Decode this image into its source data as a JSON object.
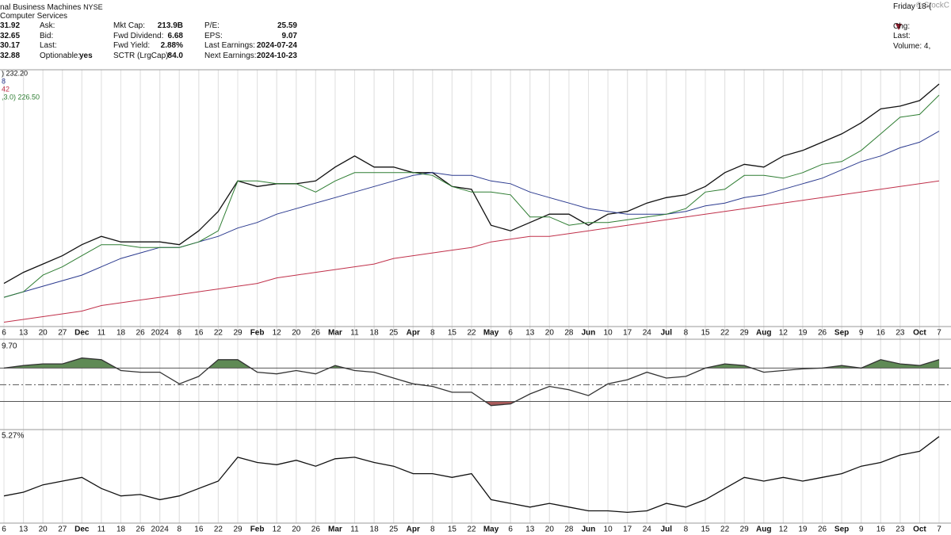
{
  "header": {
    "name": "nal Business Machines",
    "exchange": "NYSE",
    "sector": "Computer Services",
    "quote": [
      [
        "31.92",
        "Ask:"
      ],
      [
        "32.65",
        "Bid:"
      ],
      [
        "30.17",
        "Last:"
      ],
      [
        "32.88",
        "Optionable:",
        "yes"
      ]
    ],
    "fundamentals": [
      [
        "Mkt Cap:",
        "213.9B"
      ],
      [
        "Fwd Dividend:",
        "6.68"
      ],
      [
        "Fwd Yield:",
        "2.88%"
      ],
      [
        "SCTR (LrgCap):",
        "84.0"
      ]
    ],
    "earnings": [
      [
        "P/E:",
        "25.59"
      ],
      [
        "EPS:",
        "9.07"
      ],
      [
        "Last Earnings:",
        "2024-07-24"
      ],
      [
        "Next Earnings:",
        "2024-10-23"
      ]
    ],
    "right": [
      "Friday 18-(",
      "Chg:",
      "Last:",
      "Volume: 4,"
    ],
    "credit": "© StockC"
  },
  "chart_data": [
    {
      "type": "line",
      "categories": [
        "6",
        "13",
        "20",
        "27",
        "Dec",
        "11",
        "18",
        "26",
        "2024",
        "8",
        "16",
        "22",
        "29",
        "Feb",
        "12",
        "20",
        "26",
        "Mar",
        "11",
        "18",
        "25",
        "Apr",
        "8",
        "15",
        "22",
        "May",
        "6",
        "13",
        "20",
        "28",
        "Jun",
        "10",
        "17",
        "24",
        "Jul",
        "8",
        "15",
        "22",
        "29",
        "Aug",
        "12",
        "19",
        "26",
        "Sep",
        "9",
        "16",
        "23",
        "Oct",
        "7"
      ],
      "ylim": [
        145,
        236
      ],
      "series": [
        {
          "name": ") 232.20",
          "color": "#111111",
          "values": [
            160,
            164,
            167,
            170,
            174,
            177,
            175,
            175,
            175,
            174,
            179,
            186,
            197,
            195,
            196,
            196,
            197,
            202,
            206,
            202,
            202,
            200,
            200,
            195,
            194,
            181,
            179,
            182,
            185,
            185,
            181,
            185,
            186,
            189,
            191,
            192,
            195,
            200,
            203,
            202,
            206,
            208,
            211,
            214,
            218,
            223,
            224,
            226,
            232
          ]
        },
        {
          "name": "8",
          "color": "#2b3a8f",
          "values": [
            155,
            157,
            159,
            161,
            163,
            166,
            169,
            171,
            173,
            173,
            175,
            177,
            180,
            182,
            185,
            187,
            189,
            191,
            193,
            195,
            197,
            199,
            200,
            199,
            199,
            197,
            196,
            193,
            191,
            189,
            187,
            186,
            185,
            185,
            185,
            186,
            188,
            189,
            191,
            192,
            194,
            196,
            198,
            201,
            204,
            206,
            209,
            211,
            215
          ]
        },
        {
          "name": "42",
          "color": "#c0304a",
          "values": [
            146,
            147,
            148,
            149,
            150,
            152,
            153,
            154,
            155,
            156,
            157,
            158,
            159,
            160,
            162,
            163,
            164,
            165,
            166,
            167,
            169,
            170,
            171,
            172,
            173,
            175,
            176,
            177,
            177,
            178,
            179,
            180,
            181,
            182,
            183,
            184,
            185,
            186,
            187,
            188,
            189,
            190,
            191,
            192,
            193,
            194,
            195,
            196,
            197
          ]
        },
        {
          "name": ",3.0) 226.50",
          "color": "#2e7d32",
          "values": [
            155,
            157,
            163,
            166,
            170,
            174,
            174,
            173,
            173,
            173,
            175,
            179,
            197,
            197,
            196,
            196,
            193,
            197,
            200,
            200,
            200,
            200,
            199,
            195,
            193,
            193,
            192,
            184,
            184,
            181,
            182,
            182,
            183,
            184,
            185,
            187,
            193,
            194,
            199,
            199,
            198,
            200,
            203,
            204,
            208,
            214,
            220,
            221,
            228
          ]
        }
      ]
    },
    {
      "type": "line",
      "title": "9.70",
      "ylim": [
        0,
        96
      ],
      "ref_lines": [
        70,
        50,
        30
      ],
      "overbought_fill": "#5f8a55",
      "oversold_fill": "#a85a5a",
      "series": [
        {
          "color": "#333333",
          "values": [
            70,
            73,
            75,
            75,
            82,
            80,
            67,
            65,
            65,
            51,
            60,
            80,
            80,
            65,
            63,
            67,
            63,
            73,
            67,
            65,
            58,
            51,
            48,
            41,
            41,
            25,
            27,
            39,
            48,
            44,
            37,
            51,
            56,
            65,
            58,
            60,
            70,
            75,
            73,
            65,
            67,
            69,
            70,
            73,
            70,
            80,
            75,
            73,
            80
          ]
        }
      ]
    },
    {
      "type": "line",
      "title": "5.27%",
      "categories": [
        "6",
        "13",
        "20",
        "27",
        "Dec",
        "11",
        "18",
        "26",
        "2024",
        "8",
        "16",
        "22",
        "29",
        "Feb",
        "12",
        "20",
        "26",
        "Mar",
        "11",
        "18",
        "25",
        "Apr",
        "8",
        "15",
        "22",
        "May",
        "6",
        "13",
        "20",
        "28",
        "Jun",
        "10",
        "17",
        "24",
        "Jul",
        "8",
        "15",
        "22",
        "29",
        "Aug",
        "12",
        "19",
        "26",
        "Sep",
        "9",
        "16",
        "23",
        "Oct",
        "7"
      ],
      "ylim": [
        -8,
        16.5
      ],
      "series": [
        {
          "color": "#111111",
          "values": [
            -0.7,
            0.3,
            2.3,
            3.3,
            4.3,
            1.3,
            -0.7,
            -0.3,
            -1.7,
            -0.7,
            1.3,
            3.3,
            9.7,
            8.3,
            7.7,
            8.9,
            7.3,
            9.3,
            9.7,
            8.3,
            7.3,
            5.3,
            5.3,
            4.3,
            5.3,
            -1.7,
            -2.7,
            -3.7,
            -2.7,
            -3.7,
            -4.7,
            -4.7,
            -5.1,
            -4.7,
            -2.7,
            -3.7,
            -1.7,
            1.3,
            4.3,
            3.3,
            4.3,
            3.3,
            4.3,
            5.3,
            7.3,
            8.3,
            10.3,
            11.3,
            15.27
          ]
        }
      ]
    }
  ]
}
